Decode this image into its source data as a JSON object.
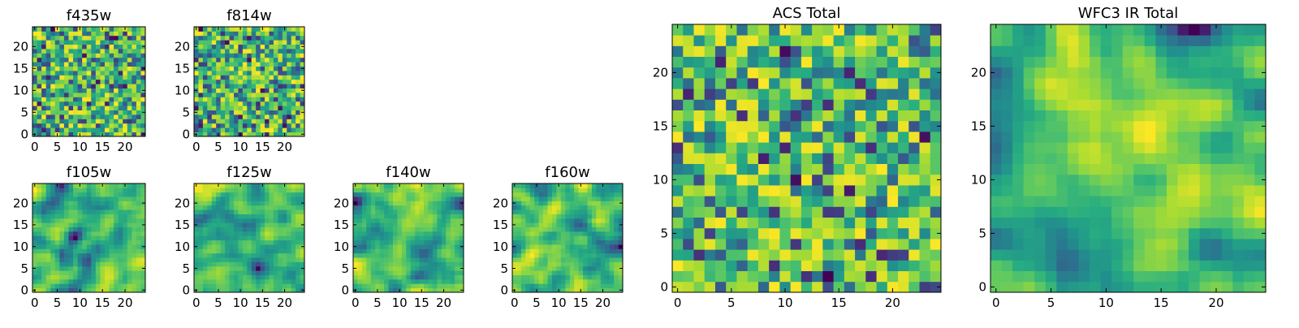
{
  "chart_data": [
    {
      "type": "heatmap",
      "title": "f435w",
      "xlabel": "",
      "ylabel": "",
      "grid_size": 25,
      "xticks": [
        0,
        5,
        10,
        15,
        20
      ],
      "yticks": [
        0,
        5,
        10,
        15,
        20
      ],
      "xlim": [
        -0.5,
        24.5
      ],
      "ylim": [
        -0.5,
        24.5
      ],
      "colormap": "viridis",
      "pattern": "noise",
      "grid": false
    },
    {
      "type": "heatmap",
      "title": "f814w",
      "xlabel": "",
      "ylabel": "",
      "grid_size": 25,
      "xticks": [
        0,
        5,
        10,
        15,
        20
      ],
      "yticks": [
        0,
        5,
        10,
        15,
        20
      ],
      "xlim": [
        -0.5,
        24.5
      ],
      "ylim": [
        -0.5,
        24.5
      ],
      "colormap": "viridis",
      "pattern": "noise",
      "grid": false
    },
    {
      "type": "heatmap",
      "title": "f105w",
      "xlabel": "",
      "ylabel": "",
      "grid_size": 25,
      "xticks": [
        0,
        5,
        10,
        15,
        20
      ],
      "yticks": [
        0,
        5,
        10,
        15,
        20
      ],
      "xlim": [
        -0.5,
        24.5
      ],
      "ylim": [
        -0.5,
        24.5
      ],
      "colormap": "viridis",
      "pattern": "smooth",
      "grid": false
    },
    {
      "type": "heatmap",
      "title": "f125w",
      "xlabel": "",
      "ylabel": "",
      "grid_size": 25,
      "xticks": [
        0,
        5,
        10,
        15,
        20
      ],
      "yticks": [
        0,
        5,
        10,
        15,
        20
      ],
      "xlim": [
        -0.5,
        24.5
      ],
      "ylim": [
        -0.5,
        24.5
      ],
      "colormap": "viridis",
      "pattern": "smooth",
      "grid": false
    },
    {
      "type": "heatmap",
      "title": "f140w",
      "xlabel": "",
      "ylabel": "",
      "grid_size": 25,
      "xticks": [
        0,
        5,
        10,
        15,
        20
      ],
      "yticks": [
        0,
        5,
        10,
        15,
        20
      ],
      "xlim": [
        -0.5,
        24.5
      ],
      "ylim": [
        -0.5,
        24.5
      ],
      "colormap": "viridis",
      "pattern": "smooth",
      "grid": false
    },
    {
      "type": "heatmap",
      "title": "f160w",
      "xlabel": "",
      "ylabel": "",
      "grid_size": 25,
      "xticks": [
        0,
        5,
        10,
        15,
        20
      ],
      "yticks": [
        0,
        5,
        10,
        15,
        20
      ],
      "xlim": [
        -0.5,
        24.5
      ],
      "ylim": [
        -0.5,
        24.5
      ],
      "colormap": "viridis",
      "pattern": "smooth",
      "grid": false
    },
    {
      "type": "heatmap",
      "title": "ACS Total",
      "xlabel": "",
      "ylabel": "",
      "grid_size": 25,
      "xticks": [
        0,
        5,
        10,
        15,
        20
      ],
      "yticks": [
        0,
        5,
        10,
        15,
        20
      ],
      "xlim": [
        -0.5,
        24.5
      ],
      "ylim": [
        -0.5,
        24.5
      ],
      "colormap": "viridis",
      "pattern": "noise",
      "grid": false
    },
    {
      "type": "heatmap",
      "title": "WFC3 IR Total",
      "xlabel": "",
      "ylabel": "",
      "grid_size": 25,
      "xticks": [
        0,
        5,
        10,
        15,
        20
      ],
      "yticks": [
        0,
        5,
        10,
        15,
        20
      ],
      "xlim": [
        -0.5,
        24.5
      ],
      "ylim": [
        -0.5,
        24.5
      ],
      "colormap": "viridis",
      "pattern": "smooth-center",
      "grid": false
    }
  ]
}
